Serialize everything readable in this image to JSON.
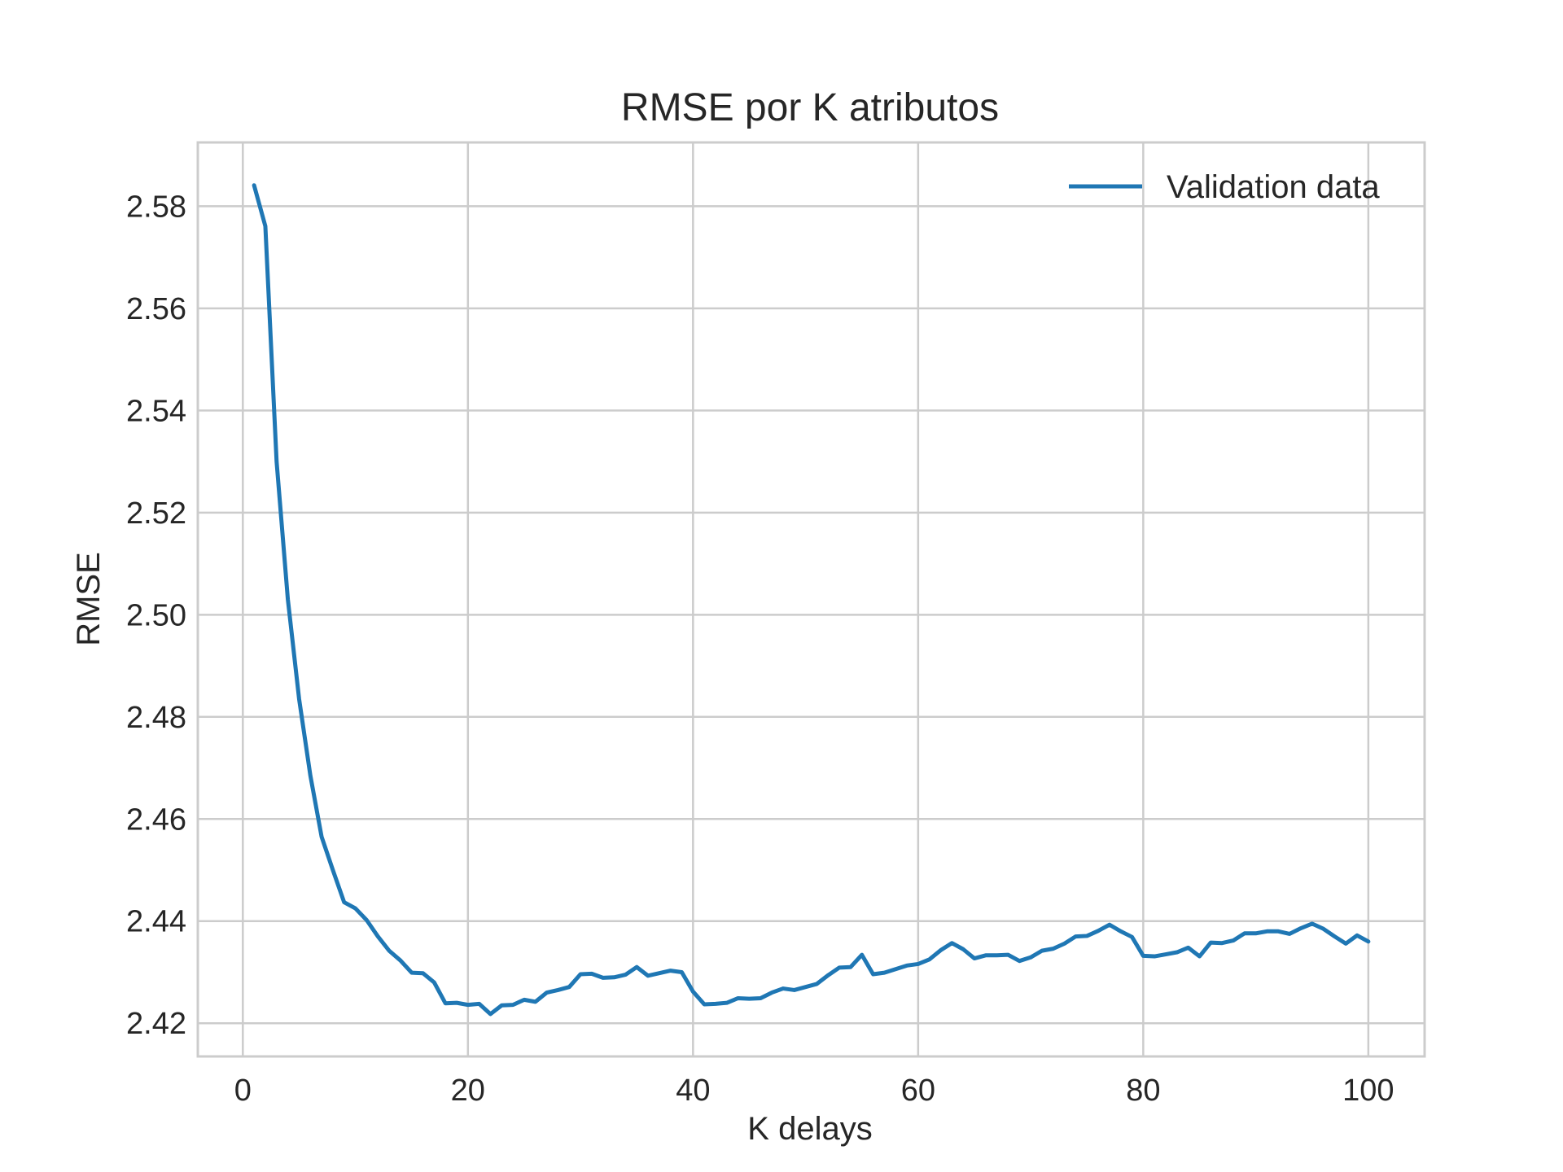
{
  "chart_data": {
    "type": "line",
    "title": "RMSE por K atributos",
    "xlabel": "K delays",
    "ylabel": "RMSE",
    "xlim": [
      -4,
      105
    ],
    "ylim": [
      2.4135,
      2.5925
    ],
    "xticks": [
      0,
      20,
      40,
      60,
      80,
      100
    ],
    "xtick_labels": [
      "0",
      "20",
      "40",
      "60",
      "80",
      "100"
    ],
    "yticks": [
      2.42,
      2.44,
      2.46,
      2.48,
      2.5,
      2.52,
      2.54,
      2.56,
      2.58
    ],
    "ytick_labels": [
      "2.42",
      "2.44",
      "2.46",
      "2.48",
      "2.50",
      "2.52",
      "2.54",
      "2.56",
      "2.58"
    ],
    "grid": true,
    "legend_position": "top-right",
    "series": [
      {
        "name": "Validation data",
        "color": "#1f77b4",
        "x": [
          1,
          2,
          3,
          4,
          5,
          6,
          7,
          8,
          9,
          10,
          11,
          12,
          13,
          14,
          15,
          16,
          17,
          18,
          19,
          20,
          21,
          22,
          23,
          24,
          25,
          26,
          27,
          28,
          29,
          30,
          31,
          32,
          33,
          34,
          35,
          36,
          37,
          38,
          39,
          40,
          41,
          42,
          43,
          44,
          45,
          46,
          47,
          48,
          49,
          50,
          51,
          52,
          53,
          54,
          55,
          56,
          57,
          58,
          59,
          60,
          61,
          62,
          63,
          64,
          65,
          66,
          67,
          68,
          69,
          70,
          71,
          72,
          73,
          74,
          75,
          76,
          77,
          78,
          79,
          80,
          81,
          82,
          83,
          84,
          85,
          86,
          87,
          88,
          89,
          90,
          91,
          92,
          93,
          94,
          95,
          96,
          97,
          98,
          99,
          100
        ],
        "values": [
          2.5841,
          2.5761,
          2.53,
          2.503,
          2.4835,
          2.4685,
          2.4565,
          2.45,
          2.4437,
          2.4425,
          2.4402,
          2.437,
          2.4342,
          2.4323,
          2.4299,
          2.4298,
          2.428,
          2.4239,
          2.424,
          2.4236,
          2.4238,
          2.4218,
          2.4235,
          2.4236,
          2.4246,
          2.4242,
          2.426,
          2.4265,
          2.4271,
          2.4296,
          2.4297,
          2.4289,
          2.429,
          2.4295,
          2.431,
          2.4293,
          2.4298,
          2.4303,
          2.43,
          2.4262,
          2.4237,
          2.4238,
          2.424,
          2.4249,
          2.4248,
          2.4249,
          2.426,
          2.4268,
          2.4265,
          2.4271,
          2.4277,
          2.4294,
          2.4309,
          2.431,
          2.4334,
          2.4296,
          2.4299,
          2.4306,
          2.4313,
          2.4316,
          2.4325,
          2.4343,
          2.4357,
          2.4345,
          2.4327,
          2.4333,
          2.4333,
          2.4334,
          2.4322,
          2.4329,
          2.4342,
          2.4346,
          2.4356,
          2.437,
          2.4371,
          2.4381,
          2.4393,
          2.438,
          2.4369,
          2.4332,
          2.4331,
          2.4335,
          2.4339,
          2.4348,
          2.4331,
          2.4358,
          2.4357,
          2.4362,
          2.4376,
          2.4376,
          2.438,
          2.438,
          2.4375,
          2.4386,
          2.4395,
          2.4385,
          2.437,
          2.4356,
          2.4372,
          2.436
        ]
      }
    ]
  }
}
